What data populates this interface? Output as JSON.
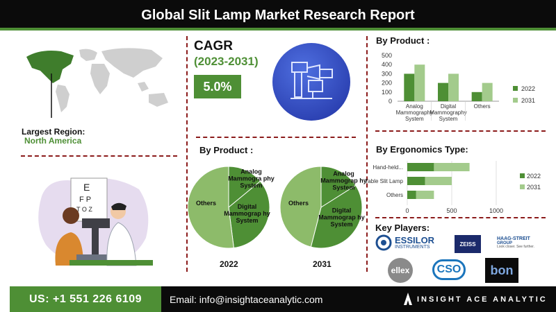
{
  "header": {
    "title": "Global Slit Lamp Market Research Report"
  },
  "region": {
    "label": "Largest Region:",
    "value": "North America"
  },
  "cagr": {
    "label": "CAGR",
    "years": "(2023-2031)",
    "value": "5.0%"
  },
  "colors": {
    "dark_green": "#4e8f35",
    "light_green": "#a3cb8c",
    "pie_light": "#8dbb6a",
    "accent_red": "#8b1a1a",
    "black": "#0b0b0b"
  },
  "icons": {
    "product": "slit-lamp-icon",
    "map": "world-map-icon"
  },
  "pies": {
    "title": "By Product :",
    "charts": [
      {
        "year": "2022",
        "slices": [
          {
            "label": "Analog Mammogra phy System",
            "value": 14
          },
          {
            "label": "Digital Mammograp hy System",
            "value": 34
          },
          {
            "label": "Others",
            "value": 52
          }
        ]
      },
      {
        "year": "2031",
        "slices": [
          {
            "label": "Analog Mammograp hy System",
            "value": 16
          },
          {
            "label": "Digital Mammograp hy System",
            "value": 38
          },
          {
            "label": "Others",
            "value": 46
          }
        ]
      }
    ]
  },
  "chart_data": [
    {
      "type": "bar",
      "title": "By Product :",
      "categories": [
        "Analog Mammography System",
        "Digital Mammography System",
        "Others"
      ],
      "category_lines": [
        [
          "Analog",
          "Mammography",
          "System"
        ],
        [
          "Digital",
          "Mammography",
          "System"
        ],
        [
          "Others"
        ]
      ],
      "series": [
        {
          "name": "2022",
          "values": [
            300,
            200,
            100
          ]
        },
        {
          "name": "2031",
          "values": [
            400,
            300,
            200
          ]
        }
      ],
      "ylim": [
        0,
        500
      ],
      "yticks": [
        0,
        100,
        200,
        300,
        400,
        500
      ],
      "grid": false,
      "legend": "right"
    },
    {
      "type": "bar",
      "orientation": "horizontal",
      "stacked": true,
      "title": "By Ergonomics Type:",
      "categories": [
        "Hand-held...",
        "Table Slit Lamp",
        "Others"
      ],
      "series": [
        {
          "name": "2022",
          "values": [
            300,
            200,
            100
          ]
        },
        {
          "name": "2031",
          "values": [
            400,
            300,
            200
          ]
        }
      ],
      "xlim": [
        0,
        1000
      ],
      "xticks": [
        0,
        500,
        1000
      ],
      "grid": true,
      "legend": "right"
    }
  ],
  "key_players": {
    "title": "Key Players:",
    "logos": [
      "ESSILOR",
      "INSTRUMENTS",
      "ZEISS",
      "HAAG-STREIT",
      "GROUP",
      "Look closer. See further.",
      "ellex",
      "CSO",
      "bon"
    ]
  },
  "footer": {
    "phone": "US: +1 551 226 6109",
    "email": "Email: info@insightaceanalytic.com",
    "brand": "INSIGHT ACE ANALYTIC"
  }
}
